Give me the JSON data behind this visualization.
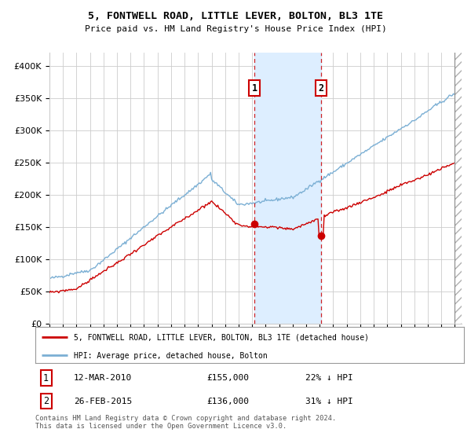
{
  "title": "5, FONTWELL ROAD, LITTLE LEVER, BOLTON, BL3 1TE",
  "subtitle": "Price paid vs. HM Land Registry's House Price Index (HPI)",
  "legend_line1": "5, FONTWELL ROAD, LITTLE LEVER, BOLTON, BL3 1TE (detached house)",
  "legend_line2": "HPI: Average price, detached house, Bolton",
  "transaction1_date": "12-MAR-2010",
  "transaction1_price": 155000,
  "transaction1_pct": "22%",
  "transaction2_date": "26-FEB-2015",
  "transaction2_price": 136000,
  "transaction2_pct": "31%",
  "footer": "Contains HM Land Registry data © Crown copyright and database right 2024.\nThis data is licensed under the Open Government Licence v3.0.",
  "hpi_color": "#7bafd4",
  "price_color": "#cc0000",
  "background_color": "#ffffff",
  "grid_color": "#cccccc",
  "highlight_color": "#ddeeff",
  "vline_color": "#cc0000",
  "ylim_max": 420000,
  "start_year": 1995,
  "end_year": 2025,
  "t1_year": 2010.18,
  "t2_year": 2015.12
}
